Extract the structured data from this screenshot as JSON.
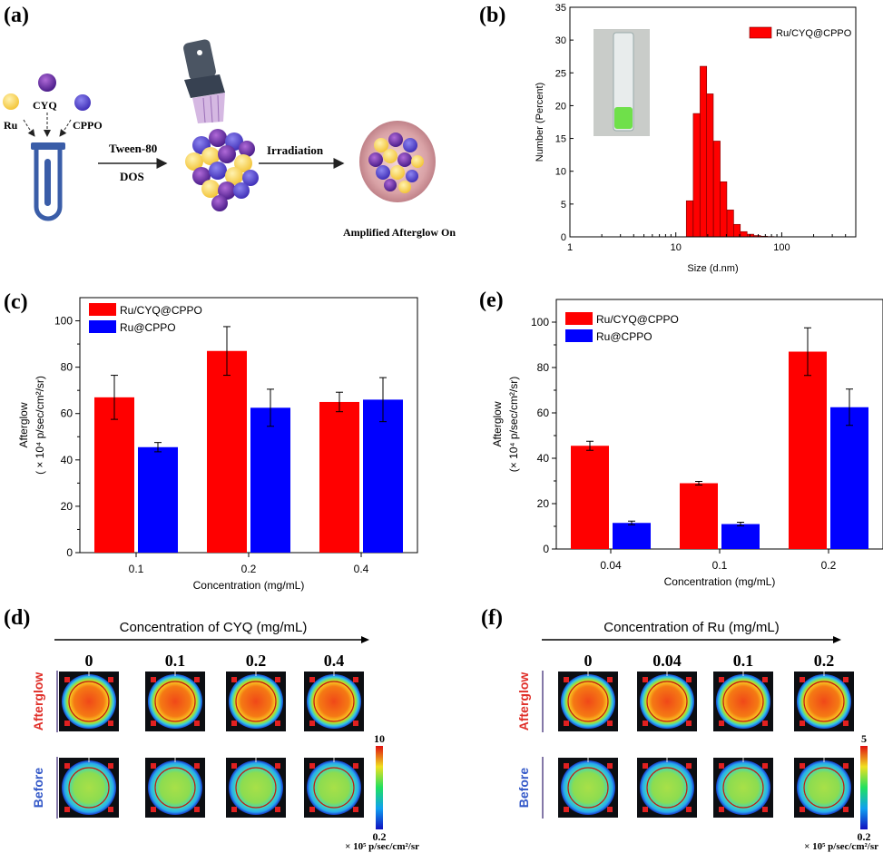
{
  "panels": {
    "a": {
      "label": "(a)",
      "reagents": [
        "Ru",
        "CYQ",
        "CPPO"
      ],
      "step1_top": "Tween-80",
      "step1_bottom": "DOS",
      "step2": "Irradiation",
      "result": "Amplified Afterglow On"
    },
    "b": {
      "label": "(b)"
    },
    "c": {
      "label": "(c)"
    },
    "d": {
      "label": "(d)",
      "header": "Concentration of CYQ (mg/mL)",
      "columns": [
        "0",
        "0.1",
        "0.2",
        "0.4"
      ],
      "rows": [
        "Afterglow",
        "Before"
      ],
      "scale_max": "10",
      "scale_min": "0.2",
      "unit": "× 10⁵  p/sec/cm²/sr"
    },
    "e": {
      "label": "(e)"
    },
    "f": {
      "label": "(f)",
      "header": "Concentration of Ru (mg/mL)",
      "columns": [
        "0",
        "0.04",
        "0.1",
        "0.2"
      ],
      "rows": [
        "Afterglow",
        "Before"
      ],
      "scale_max": "5",
      "scale_min": "0.2",
      "unit": "× 10⁵  p/sec/cm²/sr"
    }
  },
  "colors": {
    "red_series": "#ff0000",
    "blue_series": "#0000ff",
    "afterglow_label": "#e0302a",
    "before_label": "#3358c8"
  },
  "chart_data": [
    {
      "id": "b",
      "type": "bar",
      "title": "",
      "xlabel": "Size (d.nm)",
      "ylabel": "Number (Percent)",
      "xscale": "log",
      "xlim": [
        1,
        500
      ],
      "ylim": [
        0,
        35
      ],
      "xticks": [
        "1",
        "10",
        "100"
      ],
      "yticks": [
        "0",
        "5",
        "10",
        "15",
        "20",
        "25",
        "30",
        "35"
      ],
      "legend": [
        "Ru/CYQ@CPPO"
      ],
      "legend_position": "top-right",
      "series": [
        {
          "name": "Ru/CYQ@CPPO",
          "x": [
            13.5,
            15.7,
            18.2,
            21.0,
            24.4,
            28.2,
            32.7,
            37.8,
            43.8,
            50.7,
            58.8,
            68.1,
            78.8
          ],
          "values": [
            5.5,
            18.8,
            26.0,
            21.8,
            14.6,
            8.4,
            4.1,
            1.9,
            0.8,
            0.4,
            0.2,
            0.1,
            0.05
          ]
        }
      ]
    },
    {
      "id": "c",
      "type": "bar",
      "title": "",
      "xlabel": "Concentration (mg/mL)",
      "ylabel_line1": "Afterglow",
      "ylabel_line2": "( × 10⁴ p/sec/cm²/sr)",
      "categories": [
        "0.1",
        "0.2",
        "0.4"
      ],
      "ylim": [
        0,
        110
      ],
      "yticks": [
        "0",
        "20",
        "40",
        "60",
        "80",
        "100"
      ],
      "legend_position": "top-left",
      "series": [
        {
          "name": "Ru/CYQ@CPPO",
          "values": [
            67,
            87,
            65
          ],
          "errors": [
            9.5,
            10.5,
            4.2
          ]
        },
        {
          "name": "Ru@CPPO",
          "values": [
            45.5,
            62.5,
            66
          ],
          "errors": [
            2,
            8,
            9.5
          ]
        }
      ]
    },
    {
      "id": "e",
      "type": "bar",
      "title": "",
      "xlabel": "Concentration (mg/mL)",
      "ylabel_line1": "Afterglow",
      "ylabel_line2": "(× 10⁴ p/sec/cm²/sr)",
      "categories": [
        "0.04",
        "0.1",
        "0.2"
      ],
      "ylim": [
        0,
        110
      ],
      "yticks": [
        "0",
        "20",
        "40",
        "60",
        "80",
        "100"
      ],
      "legend_position": "top-left",
      "series": [
        {
          "name": "Ru/CYQ@CPPO",
          "values": [
            45.5,
            29,
            87
          ],
          "errors": [
            2,
            0.8,
            10.5
          ]
        },
        {
          "name": "Ru@CPPO",
          "values": [
            11.5,
            11,
            62.5
          ],
          "errors": [
            0.8,
            0.8,
            8
          ]
        }
      ]
    }
  ]
}
